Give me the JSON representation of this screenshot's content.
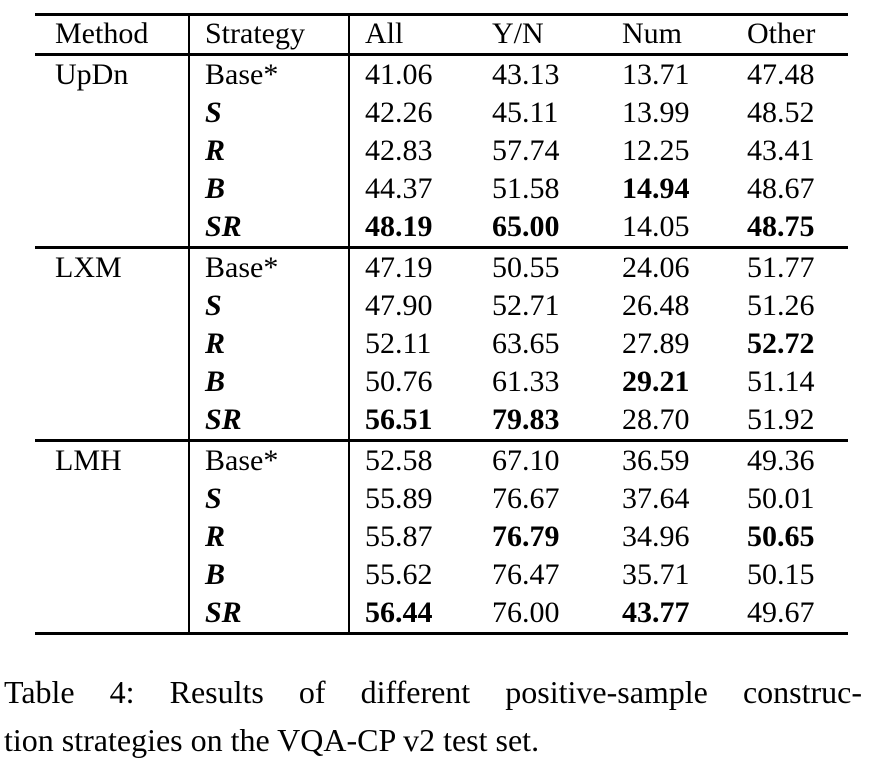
{
  "table": {
    "headers": [
      "Method",
      "Strategy",
      "All",
      "Y/N",
      "Num",
      "Other"
    ],
    "sections": [
      {
        "method": "UpDn",
        "rows": [
          {
            "strategy": "Base*",
            "strategy_emph": false,
            "values": [
              "41.06",
              "43.13",
              "13.71",
              "47.48"
            ],
            "bold": [
              false,
              false,
              false,
              false
            ]
          },
          {
            "strategy": "S",
            "strategy_emph": true,
            "values": [
              "42.26",
              "45.11",
              "13.99",
              "48.52"
            ],
            "bold": [
              false,
              false,
              false,
              false
            ]
          },
          {
            "strategy": "R",
            "strategy_emph": true,
            "values": [
              "42.83",
              "57.74",
              "12.25",
              "43.41"
            ],
            "bold": [
              false,
              false,
              false,
              false
            ]
          },
          {
            "strategy": "B",
            "strategy_emph": true,
            "values": [
              "44.37",
              "51.58",
              "14.94",
              "48.67"
            ],
            "bold": [
              false,
              false,
              true,
              false
            ]
          },
          {
            "strategy": "SR",
            "strategy_emph": true,
            "values": [
              "48.19",
              "65.00",
              "14.05",
              "48.75"
            ],
            "bold": [
              true,
              true,
              false,
              true
            ]
          }
        ]
      },
      {
        "method": "LXM",
        "rows": [
          {
            "strategy": "Base*",
            "strategy_emph": false,
            "values": [
              "47.19",
              "50.55",
              "24.06",
              "51.77"
            ],
            "bold": [
              false,
              false,
              false,
              false
            ]
          },
          {
            "strategy": "S",
            "strategy_emph": true,
            "values": [
              "47.90",
              "52.71",
              "26.48",
              "51.26"
            ],
            "bold": [
              false,
              false,
              false,
              false
            ]
          },
          {
            "strategy": "R",
            "strategy_emph": true,
            "values": [
              "52.11",
              "63.65",
              "27.89",
              "52.72"
            ],
            "bold": [
              false,
              false,
              false,
              true
            ]
          },
          {
            "strategy": "B",
            "strategy_emph": true,
            "values": [
              "50.76",
              "61.33",
              "29.21",
              "51.14"
            ],
            "bold": [
              false,
              false,
              true,
              false
            ]
          },
          {
            "strategy": "SR",
            "strategy_emph": true,
            "values": [
              "56.51",
              "79.83",
              "28.70",
              "51.92"
            ],
            "bold": [
              true,
              true,
              false,
              false
            ]
          }
        ]
      },
      {
        "method": "LMH",
        "rows": [
          {
            "strategy": "Base*",
            "strategy_emph": false,
            "values": [
              "52.58",
              "67.10",
              "36.59",
              "49.36"
            ],
            "bold": [
              false,
              false,
              false,
              false
            ]
          },
          {
            "strategy": "S",
            "strategy_emph": true,
            "values": [
              "55.89",
              "76.67",
              "37.64",
              "50.01"
            ],
            "bold": [
              false,
              false,
              false,
              false
            ]
          },
          {
            "strategy": "R",
            "strategy_emph": true,
            "values": [
              "55.87",
              "76.79",
              "34.96",
              "50.65"
            ],
            "bold": [
              false,
              true,
              false,
              true
            ]
          },
          {
            "strategy": "B",
            "strategy_emph": true,
            "values": [
              "55.62",
              "76.47",
              "35.71",
              "50.15"
            ],
            "bold": [
              false,
              false,
              false,
              false
            ]
          },
          {
            "strategy": "SR",
            "strategy_emph": true,
            "values": [
              "56.44",
              "76.00",
              "43.77",
              "49.67"
            ],
            "bold": [
              true,
              false,
              true,
              false
            ]
          }
        ]
      }
    ]
  },
  "caption": {
    "line1": "Table 4: Results of different positive-sample construc-",
    "line2": "tion strategies on the VQA-CP v2 test set."
  }
}
